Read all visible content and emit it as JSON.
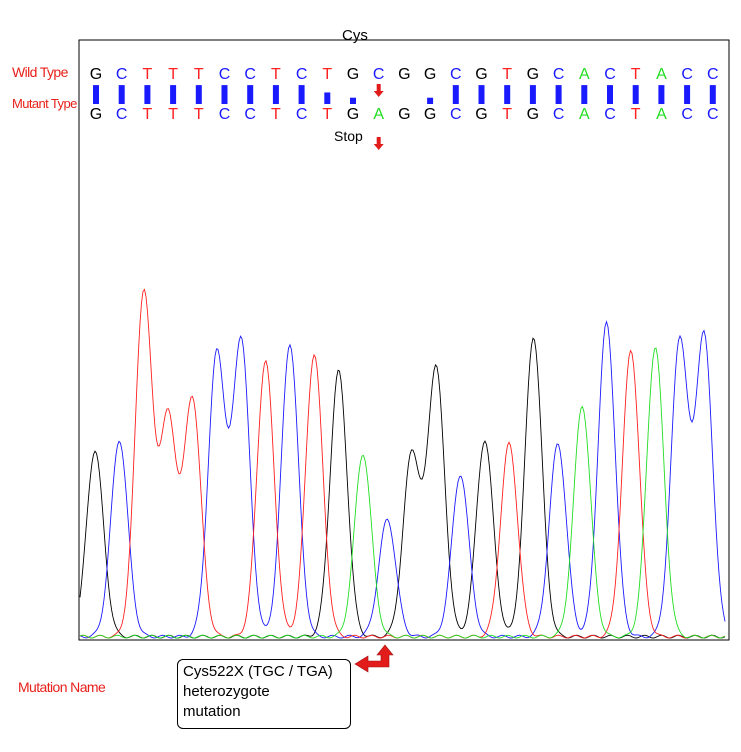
{
  "codon_label": "Cys",
  "wild_type_label": "Wild Type",
  "mutant_type_label": "Mutant Type",
  "stop_label": "Stop",
  "mutation_name_label": "Mutation Name",
  "mutation_box": {
    "line1": "Cys522X (TGC / TGA)",
    "line2": "heterozygote",
    "line3": "mutation"
  },
  "colors": {
    "G": "#000000",
    "C": "#1a1aff",
    "T": "#ff2020",
    "A": "#22dd22",
    "label_red": "#e8201a",
    "quality_bar": "#1a1aff",
    "arrow_red": "#e21b1b"
  },
  "wild_type_sequence": [
    "G",
    "C",
    "T",
    "T",
    "T",
    "C",
    "C",
    "T",
    "C",
    "T",
    "G",
    "C",
    "G",
    "G",
    "C",
    "G",
    "T",
    "G",
    "C",
    "A",
    "C",
    "T",
    "A",
    "C",
    "C"
  ],
  "mutant_type_sequence": [
    "G",
    "C",
    "T",
    "T",
    "T",
    "C",
    "C",
    "T",
    "C",
    "T",
    "G",
    "A",
    "G",
    "G",
    "C",
    "G",
    "T",
    "G",
    "C",
    "A",
    "C",
    "T",
    "A",
    "C",
    "C"
  ],
  "mutation_position_index": 11,
  "quality_values": [
    0.9,
    0.9,
    0.9,
    0.9,
    0.9,
    0.9,
    0.9,
    0.9,
    0.9,
    0.55,
    0.3,
    0,
    0,
    0.3,
    0.9,
    0.9,
    0.9,
    0.9,
    0.9,
    0.9,
    0.9,
    0.9,
    0.9,
    0.9,
    0.9
  ],
  "chromatogram_peaks": [
    {
      "base": "G",
      "height": 0.54
    },
    {
      "base": "C",
      "height": 0.57
    },
    {
      "base": "T",
      "height": 1.0
    },
    {
      "base": "T",
      "height": 0.63
    },
    {
      "base": "T",
      "height": 0.69
    },
    {
      "base": "C",
      "height": 0.82
    },
    {
      "base": "C",
      "height": 0.86
    },
    {
      "base": "T",
      "height": 0.8
    },
    {
      "base": "C",
      "height": 0.85
    },
    {
      "base": "T",
      "height": 0.82
    },
    {
      "base": "G",
      "height": 0.77
    },
    {
      "base": "A",
      "height": 0.53
    },
    {
      "base": "C",
      "height": 0.34
    },
    {
      "base": "G",
      "height": 0.53
    },
    {
      "base": "G",
      "height": 0.78
    },
    {
      "base": "C",
      "height": 0.47
    },
    {
      "base": "G",
      "height": 0.57
    },
    {
      "base": "T",
      "height": 0.56
    },
    {
      "base": "G",
      "height": 0.87
    },
    {
      "base": "C",
      "height": 0.56
    },
    {
      "base": "A",
      "height": 0.67
    },
    {
      "base": "C",
      "height": 0.91
    },
    {
      "base": "T",
      "height": 0.83
    },
    {
      "base": "A",
      "height": 0.84
    },
    {
      "base": "C",
      "height": 0.86
    },
    {
      "base": "C",
      "height": 0.87
    }
  ]
}
